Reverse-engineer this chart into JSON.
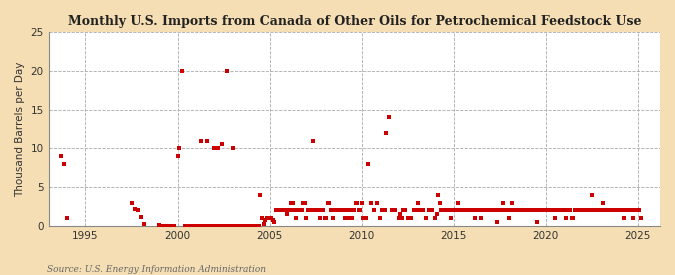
{
  "title": "Monthly U.S. Imports from Canada of Other Oils for Petrochemical Feedstock Use",
  "ylabel": "Thousand Barrels per Day",
  "source": "Source: U.S. Energy Information Administration",
  "background_color": "#f5deb3",
  "plot_background_color": "#ffffff",
  "marker_color": "#cc0000",
  "marker_size": 5,
  "ylim": [
    0,
    25
  ],
  "yticks": [
    0,
    5,
    10,
    15,
    20,
    25
  ],
  "xlim_start": 1993.0,
  "xlim_end": 2026.2,
  "xticks": [
    1995,
    2000,
    2005,
    2010,
    2015,
    2020,
    2025
  ],
  "data_points": [
    [
      1993.67,
      9.0
    ],
    [
      1993.83,
      8.0
    ],
    [
      1994.0,
      1.0
    ],
    [
      1997.5,
      3.0
    ],
    [
      1997.67,
      2.2
    ],
    [
      1997.83,
      2.0
    ],
    [
      1998.0,
      1.2
    ],
    [
      1998.17,
      0.3
    ],
    [
      1999.0,
      0.1
    ],
    [
      1999.17,
      0.0
    ],
    [
      1999.33,
      0.0
    ],
    [
      1999.5,
      0.0
    ],
    [
      1999.67,
      0.0
    ],
    [
      1999.83,
      0.0
    ],
    [
      2000.0,
      9.0
    ],
    [
      2000.08,
      10.0
    ],
    [
      2000.25,
      20.0
    ],
    [
      2000.42,
      0.0
    ],
    [
      2000.58,
      0.0
    ],
    [
      2000.75,
      0.0
    ],
    [
      2000.92,
      0.0
    ],
    [
      2001.0,
      0.0
    ],
    [
      2001.08,
      0.0
    ],
    [
      2001.17,
      0.0
    ],
    [
      2001.25,
      11.0
    ],
    [
      2001.33,
      0.0
    ],
    [
      2001.42,
      0.0
    ],
    [
      2001.5,
      0.0
    ],
    [
      2001.58,
      11.0
    ],
    [
      2001.67,
      0.0
    ],
    [
      2001.75,
      0.0
    ],
    [
      2001.83,
      0.0
    ],
    [
      2001.92,
      0.0
    ],
    [
      2002.0,
      10.0
    ],
    [
      2002.08,
      0.0
    ],
    [
      2002.17,
      10.0
    ],
    [
      2002.25,
      0.0
    ],
    [
      2002.33,
      0.0
    ],
    [
      2002.42,
      10.5
    ],
    [
      2002.5,
      0.0
    ],
    [
      2002.58,
      0.0
    ],
    [
      2002.67,
      20.0
    ],
    [
      2002.75,
      0.0
    ],
    [
      2002.83,
      0.0
    ],
    [
      2002.92,
      0.0
    ],
    [
      2003.0,
      10.0
    ],
    [
      2003.08,
      0.0
    ],
    [
      2003.17,
      0.0
    ],
    [
      2003.25,
      0.0
    ],
    [
      2003.33,
      0.0
    ],
    [
      2003.42,
      0.0
    ],
    [
      2003.5,
      0.0
    ],
    [
      2003.58,
      0.0
    ],
    [
      2003.67,
      0.0
    ],
    [
      2003.75,
      0.0
    ],
    [
      2003.83,
      0.0
    ],
    [
      2003.92,
      0.0
    ],
    [
      2004.0,
      0.0
    ],
    [
      2004.08,
      0.0
    ],
    [
      2004.17,
      0.0
    ],
    [
      2004.25,
      0.0
    ],
    [
      2004.33,
      0.0
    ],
    [
      2004.42,
      0.0
    ],
    [
      2004.5,
      4.0
    ],
    [
      2004.58,
      1.0
    ],
    [
      2004.67,
      0.3
    ],
    [
      2004.75,
      0.8
    ],
    [
      2004.83,
      1.0
    ],
    [
      2004.92,
      1.0
    ],
    [
      2005.0,
      1.0
    ],
    [
      2005.08,
      1.0
    ],
    [
      2005.17,
      0.8
    ],
    [
      2005.25,
      0.5
    ],
    [
      2005.33,
      2.0
    ],
    [
      2005.42,
      2.0
    ],
    [
      2005.5,
      2.0
    ],
    [
      2005.58,
      2.0
    ],
    [
      2005.67,
      2.0
    ],
    [
      2005.75,
      2.0
    ],
    [
      2005.83,
      2.0
    ],
    [
      2005.92,
      1.5
    ],
    [
      2006.0,
      2.0
    ],
    [
      2006.08,
      2.0
    ],
    [
      2006.17,
      3.0
    ],
    [
      2006.25,
      3.0
    ],
    [
      2006.33,
      2.0
    ],
    [
      2006.42,
      1.0
    ],
    [
      2006.5,
      2.0
    ],
    [
      2006.58,
      2.0
    ],
    [
      2006.67,
      2.0
    ],
    [
      2006.75,
      2.0
    ],
    [
      2006.83,
      3.0
    ],
    [
      2006.92,
      3.0
    ],
    [
      2007.0,
      1.0
    ],
    [
      2007.08,
      2.0
    ],
    [
      2007.17,
      2.0
    ],
    [
      2007.25,
      2.0
    ],
    [
      2007.33,
      11.0
    ],
    [
      2007.42,
      2.0
    ],
    [
      2007.5,
      2.0
    ],
    [
      2007.58,
      2.0
    ],
    [
      2007.67,
      2.0
    ],
    [
      2007.75,
      1.0
    ],
    [
      2007.83,
      2.0
    ],
    [
      2007.92,
      2.0
    ],
    [
      2008.0,
      1.0
    ],
    [
      2008.08,
      1.0
    ],
    [
      2008.17,
      3.0
    ],
    [
      2008.25,
      3.0
    ],
    [
      2008.33,
      2.0
    ],
    [
      2008.42,
      1.0
    ],
    [
      2008.5,
      2.0
    ],
    [
      2008.58,
      2.0
    ],
    [
      2008.67,
      2.0
    ],
    [
      2008.75,
      2.0
    ],
    [
      2008.83,
      2.0
    ],
    [
      2008.92,
      2.0
    ],
    [
      2009.0,
      2.0
    ],
    [
      2009.08,
      1.0
    ],
    [
      2009.17,
      2.0
    ],
    [
      2009.25,
      1.0
    ],
    [
      2009.33,
      2.0
    ],
    [
      2009.42,
      2.0
    ],
    [
      2009.5,
      1.0
    ],
    [
      2009.58,
      2.0
    ],
    [
      2009.67,
      3.0
    ],
    [
      2009.75,
      3.0
    ],
    [
      2009.83,
      2.0
    ],
    [
      2009.92,
      2.0
    ],
    [
      2010.0,
      3.0
    ],
    [
      2010.08,
      1.0
    ],
    [
      2010.17,
      1.0
    ],
    [
      2010.25,
      1.0
    ],
    [
      2010.33,
      8.0
    ],
    [
      2010.5,
      3.0
    ],
    [
      2010.67,
      2.0
    ],
    [
      2010.83,
      3.0
    ],
    [
      2011.0,
      1.0
    ],
    [
      2011.08,
      2.0
    ],
    [
      2011.17,
      2.0
    ],
    [
      2011.25,
      2.0
    ],
    [
      2011.33,
      12.0
    ],
    [
      2011.5,
      14.0
    ],
    [
      2011.67,
      2.0
    ],
    [
      2011.83,
      2.0
    ],
    [
      2012.0,
      1.0
    ],
    [
      2012.08,
      1.5
    ],
    [
      2012.17,
      1.0
    ],
    [
      2012.25,
      2.0
    ],
    [
      2012.33,
      2.0
    ],
    [
      2012.5,
      1.0
    ],
    [
      2012.67,
      1.0
    ],
    [
      2012.83,
      2.0
    ],
    [
      2013.0,
      2.0
    ],
    [
      2013.08,
      3.0
    ],
    [
      2013.17,
      2.0
    ],
    [
      2013.25,
      2.0
    ],
    [
      2013.33,
      2.0
    ],
    [
      2013.5,
      1.0
    ],
    [
      2013.67,
      2.0
    ],
    [
      2013.83,
      2.0
    ],
    [
      2014.0,
      1.0
    ],
    [
      2014.08,
      1.5
    ],
    [
      2014.17,
      4.0
    ],
    [
      2014.25,
      3.0
    ],
    [
      2014.33,
      2.0
    ],
    [
      2014.42,
      2.0
    ],
    [
      2014.5,
      2.0
    ],
    [
      2014.67,
      2.0
    ],
    [
      2014.75,
      2.0
    ],
    [
      2014.83,
      1.0
    ],
    [
      2014.92,
      2.0
    ],
    [
      2015.0,
      2.0
    ],
    [
      2015.08,
      2.0
    ],
    [
      2015.17,
      2.0
    ],
    [
      2015.25,
      3.0
    ],
    [
      2015.33,
      2.0
    ],
    [
      2015.42,
      2.0
    ],
    [
      2015.5,
      2.0
    ],
    [
      2015.58,
      2.0
    ],
    [
      2015.67,
      2.0
    ],
    [
      2015.75,
      2.0
    ],
    [
      2015.83,
      2.0
    ],
    [
      2015.92,
      2.0
    ],
    [
      2016.0,
      2.0
    ],
    [
      2016.08,
      2.0
    ],
    [
      2016.17,
      1.0
    ],
    [
      2016.25,
      2.0
    ],
    [
      2016.33,
      2.0
    ],
    [
      2016.42,
      2.0
    ],
    [
      2016.5,
      1.0
    ],
    [
      2016.58,
      2.0
    ],
    [
      2016.67,
      2.0
    ],
    [
      2016.75,
      2.0
    ],
    [
      2016.83,
      2.0
    ],
    [
      2016.92,
      2.0
    ],
    [
      2017.0,
      2.0
    ],
    [
      2017.08,
      2.0
    ],
    [
      2017.17,
      2.0
    ],
    [
      2017.25,
      2.0
    ],
    [
      2017.33,
      0.5
    ],
    [
      2017.42,
      2.0
    ],
    [
      2017.5,
      2.0
    ],
    [
      2017.58,
      2.0
    ],
    [
      2017.67,
      3.0
    ],
    [
      2017.75,
      2.0
    ],
    [
      2017.83,
      2.0
    ],
    [
      2017.92,
      2.0
    ],
    [
      2018.0,
      1.0
    ],
    [
      2018.08,
      2.0
    ],
    [
      2018.17,
      3.0
    ],
    [
      2018.25,
      2.0
    ],
    [
      2018.33,
      2.0
    ],
    [
      2018.42,
      2.0
    ],
    [
      2018.5,
      2.0
    ],
    [
      2018.58,
      2.0
    ],
    [
      2018.67,
      2.0
    ],
    [
      2018.75,
      2.0
    ],
    [
      2018.83,
      2.0
    ],
    [
      2018.92,
      2.0
    ],
    [
      2019.0,
      2.0
    ],
    [
      2019.08,
      2.0
    ],
    [
      2019.17,
      2.0
    ],
    [
      2019.25,
      2.0
    ],
    [
      2019.33,
      2.0
    ],
    [
      2019.42,
      2.0
    ],
    [
      2019.5,
      0.5
    ],
    [
      2019.58,
      2.0
    ],
    [
      2019.67,
      2.0
    ],
    [
      2019.75,
      2.0
    ],
    [
      2019.83,
      2.0
    ],
    [
      2019.92,
      2.0
    ],
    [
      2020.0,
      2.0
    ],
    [
      2020.08,
      2.0
    ],
    [
      2020.17,
      2.0
    ],
    [
      2020.25,
      2.0
    ],
    [
      2020.33,
      2.0
    ],
    [
      2020.42,
      2.0
    ],
    [
      2020.5,
      1.0
    ],
    [
      2020.58,
      2.0
    ],
    [
      2020.67,
      2.0
    ],
    [
      2020.75,
      2.0
    ],
    [
      2020.83,
      2.0
    ],
    [
      2020.92,
      2.0
    ],
    [
      2021.0,
      2.0
    ],
    [
      2021.08,
      1.0
    ],
    [
      2021.17,
      2.0
    ],
    [
      2021.25,
      2.0
    ],
    [
      2021.33,
      2.0
    ],
    [
      2021.42,
      1.0
    ],
    [
      2021.5,
      1.0
    ],
    [
      2021.58,
      2.0
    ],
    [
      2021.67,
      2.0
    ],
    [
      2021.75,
      2.0
    ],
    [
      2021.83,
      2.0
    ],
    [
      2021.92,
      2.0
    ],
    [
      2022.0,
      2.0
    ],
    [
      2022.08,
      2.0
    ],
    [
      2022.17,
      2.0
    ],
    [
      2022.25,
      2.0
    ],
    [
      2022.33,
      2.0
    ],
    [
      2022.42,
      2.0
    ],
    [
      2022.5,
      4.0
    ],
    [
      2022.58,
      2.0
    ],
    [
      2022.67,
      2.0
    ],
    [
      2022.75,
      2.0
    ],
    [
      2022.83,
      2.0
    ],
    [
      2022.92,
      2.0
    ],
    [
      2023.0,
      2.0
    ],
    [
      2023.08,
      3.0
    ],
    [
      2023.17,
      2.0
    ],
    [
      2023.25,
      2.0
    ],
    [
      2023.33,
      2.0
    ],
    [
      2023.42,
      2.0
    ],
    [
      2023.5,
      2.0
    ],
    [
      2023.58,
      2.0
    ],
    [
      2023.67,
      2.0
    ],
    [
      2023.75,
      2.0
    ],
    [
      2023.83,
      2.0
    ],
    [
      2023.92,
      2.0
    ],
    [
      2024.0,
      2.0
    ],
    [
      2024.08,
      2.0
    ],
    [
      2024.17,
      2.0
    ],
    [
      2024.25,
      1.0
    ],
    [
      2024.33,
      2.0
    ],
    [
      2024.42,
      2.0
    ],
    [
      2024.5,
      2.0
    ],
    [
      2024.58,
      2.0
    ],
    [
      2024.67,
      2.0
    ],
    [
      2024.75,
      1.0
    ],
    [
      2024.83,
      2.0
    ],
    [
      2024.92,
      2.0
    ],
    [
      2025.0,
      2.0
    ],
    [
      2025.08,
      2.0
    ],
    [
      2025.17,
      1.0
    ]
  ]
}
